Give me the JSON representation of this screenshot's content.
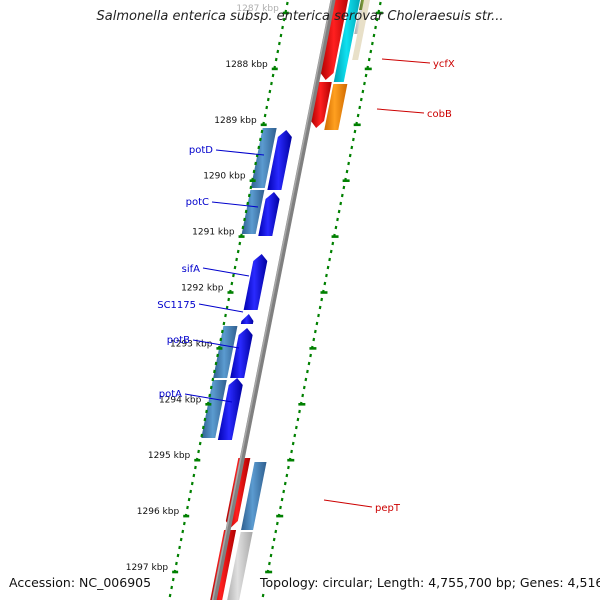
{
  "title": "Salmonella enterica subsp. enterica serovar Choleraesuis str...",
  "footer": {
    "accession": "Accession: NC_006905",
    "topology": "Topology: circular; Length: 4,755,700 bp; Genes: 4,516"
  },
  "colors": {
    "backbone": "#808080",
    "tick_green": "#008000",
    "tick_label": "#111111",
    "minus_strand_blue": "#4682b4",
    "plus_strand_blue": "#0000ff",
    "red_gene": "#ff0000",
    "orange_gene": "#ff8c00",
    "cyan_gene": "#00ced1",
    "grey_gene": "#c8c8c8",
    "olive_gene": "#6b8e23",
    "label_blue": "#0000cc",
    "label_red": "#cc0000"
  },
  "scale": {
    "unit": "kbp",
    "tick_labels": [
      "1287 kbp",
      "1288 kbp",
      "1289 kbp",
      "1290 kbp",
      "1291 kbp",
      "1292 kbp",
      "1293 kbp",
      "1294 kbp",
      "1295 kbp",
      "1296 kbp",
      "1297 kbp"
    ]
  },
  "gene_labels": [
    {
      "name": "ycfX",
      "color": "red"
    },
    {
      "name": "cobB",
      "color": "red"
    },
    {
      "name": "potD",
      "color": "blue"
    },
    {
      "name": "potC",
      "color": "blue"
    },
    {
      "name": "sifA",
      "color": "blue"
    },
    {
      "name": "SC1175",
      "color": "blue"
    },
    {
      "name": "potB",
      "color": "blue"
    },
    {
      "name": "potA",
      "color": "blue"
    },
    {
      "name": "pepT",
      "color": "red"
    }
  ]
}
